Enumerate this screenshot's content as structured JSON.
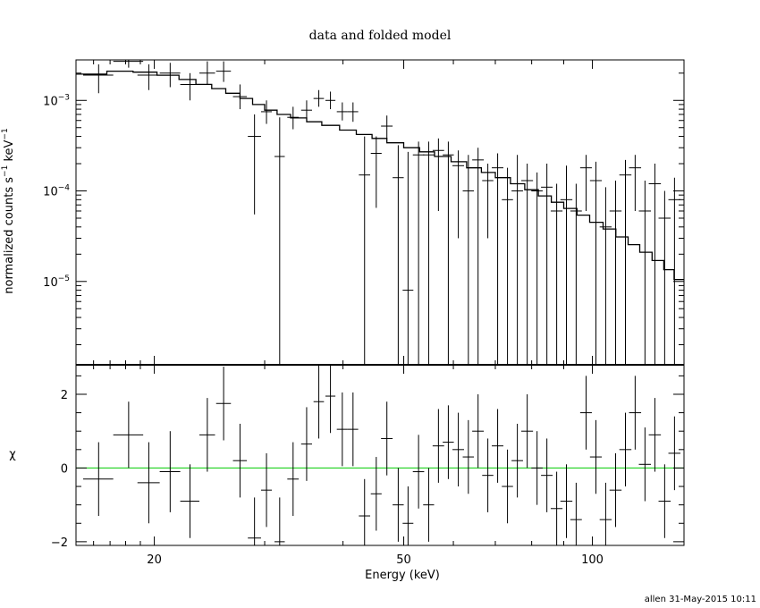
{
  "chart_data": {
    "type": "scatter",
    "title": "data and folded model",
    "xlabel": "Energy (keV)",
    "xscale": "log",
    "xlim": [
      15,
      140
    ],
    "footer": "allen 31-May-2015 10:11",
    "top_panel": {
      "ylabel_main": "normalized counts s",
      "ylabel_sup1": "−1",
      "ylabel_mid": " keV",
      "ylabel_sup2": "−1",
      "yscale": "log",
      "ylim": [
        1.2e-06,
        0.0028
      ],
      "ytick_labels": [
        {
          "base": "10",
          "exp": "−3",
          "value": 0.001
        },
        {
          "base": "10",
          "exp": "−4",
          "value": 0.0001
        },
        {
          "base": "10",
          "exp": "−5",
          "value": 1e-05
        }
      ],
      "data": [
        {
          "x": 16.3,
          "dx": 0.9,
          "y": 0.0019,
          "lo": 0.0012,
          "hi": 0.0025
        },
        {
          "x": 18.2,
          "dx": 1.0,
          "y": 0.0027,
          "lo": 0.0023,
          "hi": 0.0028
        },
        {
          "x": 19.6,
          "dx": 0.8,
          "y": 0.0019,
          "lo": 0.0013,
          "hi": 0.0025
        },
        {
          "x": 21.2,
          "dx": 0.8,
          "y": 0.002,
          "lo": 0.0014,
          "hi": 0.0026
        },
        {
          "x": 22.8,
          "dx": 0.8,
          "y": 0.0015,
          "lo": 0.001,
          "hi": 0.002
        },
        {
          "x": 24.3,
          "dx": 0.7,
          "y": 0.002,
          "lo": 0.0015,
          "hi": 0.0027
        },
        {
          "x": 25.8,
          "dx": 0.7,
          "y": 0.0021,
          "lo": 0.0016,
          "hi": 0.0027
        },
        {
          "x": 27.4,
          "dx": 0.7,
          "y": 0.0011,
          "lo": 0.0008,
          "hi": 0.0015
        },
        {
          "x": 28.9,
          "dx": 0.7,
          "y": 0.0004,
          "lo": 5.5e-05,
          "hi": 0.0007
        },
        {
          "x": 30.2,
          "dx": 0.6,
          "y": 0.00075,
          "lo": 0.00055,
          "hi": 0.001
        },
        {
          "x": 31.7,
          "dx": 0.6,
          "y": 0.00024,
          "lo": 1.2e-06,
          "hi": 0.00065
        },
        {
          "x": 33.3,
          "dx": 0.7,
          "y": 0.00065,
          "lo": 0.00048,
          "hi": 0.00085
        },
        {
          "x": 35.0,
          "dx": 0.7,
          "y": 0.00078,
          "lo": 0.0006,
          "hi": 0.001
        },
        {
          "x": 36.6,
          "dx": 0.7,
          "y": 0.00105,
          "lo": 0.00085,
          "hi": 0.0013
        },
        {
          "x": 38.2,
          "dx": 0.7,
          "y": 0.001,
          "lo": 0.0008,
          "hi": 0.00125
        },
        {
          "x": 39.9,
          "dx": 0.8,
          "y": 0.00075,
          "lo": 0.0006,
          "hi": 0.00095
        },
        {
          "x": 41.5,
          "dx": 0.8,
          "y": 0.00075,
          "lo": 0.00058,
          "hi": 0.00095
        },
        {
          "x": 43.3,
          "dx": 0.9,
          "y": 0.00015,
          "lo": 1.2e-06,
          "hi": 0.0004
        },
        {
          "x": 45.2,
          "dx": 0.9,
          "y": 0.00026,
          "lo": 6.5e-05,
          "hi": 0.0004
        },
        {
          "x": 47.0,
          "dx": 1.0,
          "y": 0.00052,
          "lo": 0.00038,
          "hi": 0.00068
        },
        {
          "x": 49.0,
          "dx": 1.0,
          "y": 0.00014,
          "lo": 1.2e-06,
          "hi": 0.00032
        },
        {
          "x": 50.8,
          "dx": 1.0,
          "y": 8e-06,
          "lo": 1.2e-06,
          "hi": 0.00027
        },
        {
          "x": 52.8,
          "dx": 1.1,
          "y": 0.00025,
          "lo": 1.2e-06,
          "hi": 0.00035
        },
        {
          "x": 54.8,
          "dx": 1.1,
          "y": 0.00025,
          "lo": 1.2e-06,
          "hi": 0.00035
        },
        {
          "x": 56.8,
          "dx": 1.2,
          "y": 0.00028,
          "lo": 6e-05,
          "hi": 0.00038
        },
        {
          "x": 58.9,
          "dx": 1.2,
          "y": 0.00025,
          "lo": 1.2e-06,
          "hi": 0.00035
        },
        {
          "x": 61.1,
          "dx": 1.3,
          "y": 0.00019,
          "lo": 3e-05,
          "hi": 0.00028
        },
        {
          "x": 63.4,
          "dx": 1.3,
          "y": 0.0001,
          "lo": 1.2e-06,
          "hi": 0.00025
        },
        {
          "x": 65.7,
          "dx": 1.4,
          "y": 0.00022,
          "lo": 1.2e-06,
          "hi": 0.0003
        },
        {
          "x": 68.1,
          "dx": 1.4,
          "y": 0.00013,
          "lo": 3e-05,
          "hi": 0.0002
        },
        {
          "x": 70.6,
          "dx": 1.5,
          "y": 0.00018,
          "lo": 1.2e-06,
          "hi": 0.00026
        },
        {
          "x": 73.2,
          "dx": 1.5,
          "y": 8e-05,
          "lo": 1.2e-06,
          "hi": 0.00018
        },
        {
          "x": 75.9,
          "dx": 1.6,
          "y": 0.0001,
          "lo": 1.2e-06,
          "hi": 0.00025
        },
        {
          "x": 78.7,
          "dx": 1.7,
          "y": 0.00013,
          "lo": 1.2e-06,
          "hi": 0.0002
        },
        {
          "x": 81.6,
          "dx": 1.7,
          "y": 0.0001,
          "lo": 1.2e-06,
          "hi": 0.00016
        },
        {
          "x": 84.6,
          "dx": 1.8,
          "y": 0.00011,
          "lo": 1.2e-06,
          "hi": 0.0002
        },
        {
          "x": 87.7,
          "dx": 1.9,
          "y": 6e-05,
          "lo": 1.2e-06,
          "hi": 0.00012
        },
        {
          "x": 90.9,
          "dx": 2.0,
          "y": 8e-05,
          "lo": 1.2e-06,
          "hi": 0.00019
        },
        {
          "x": 94.2,
          "dx": 2.0,
          "y": 6e-05,
          "lo": 1.2e-06,
          "hi": 0.00012
        },
        {
          "x": 97.7,
          "dx": 2.1,
          "y": 0.00018,
          "lo": 6e-05,
          "hi": 0.00025
        },
        {
          "x": 101.3,
          "dx": 2.2,
          "y": 0.00013,
          "lo": 1.2e-06,
          "hi": 0.00021
        },
        {
          "x": 105.0,
          "dx": 2.3,
          "y": 4e-05,
          "lo": 1.2e-06,
          "hi": 0.00011
        },
        {
          "x": 108.9,
          "dx": 2.4,
          "y": 6e-05,
          "lo": 1.2e-06,
          "hi": 0.00013
        },
        {
          "x": 112.9,
          "dx": 2.5,
          "y": 0.00015,
          "lo": 1.2e-06,
          "hi": 0.00022
        },
        {
          "x": 117.0,
          "dx": 2.6,
          "y": 0.00018,
          "lo": 6e-05,
          "hi": 0.00025
        },
        {
          "x": 121.3,
          "dx": 2.7,
          "y": 6e-05,
          "lo": 1.2e-06,
          "hi": 0.00013
        },
        {
          "x": 125.8,
          "dx": 2.8,
          "y": 0.00012,
          "lo": 1.2e-06,
          "hi": 0.0002
        },
        {
          "x": 130.4,
          "dx": 2.9,
          "y": 5e-05,
          "lo": 1.2e-06,
          "hi": 0.0001
        },
        {
          "x": 135.2,
          "dx": 3.0,
          "y": 8e-05,
          "lo": 1.2e-06,
          "hi": 0.00014
        }
      ],
      "model": [
        [
          15.0,
          0.00195
        ],
        [
          16.8,
          0.00195
        ],
        [
          16.8,
          0.0021
        ],
        [
          18.5,
          0.0021
        ],
        [
          18.5,
          0.00205
        ],
        [
          20.2,
          0.00205
        ],
        [
          20.2,
          0.0019
        ],
        [
          21.9,
          0.0019
        ],
        [
          21.9,
          0.0017
        ],
        [
          23.3,
          0.0017
        ],
        [
          23.3,
          0.0015
        ],
        [
          24.7,
          0.0015
        ],
        [
          24.7,
          0.00135
        ],
        [
          26.0,
          0.00135
        ],
        [
          26.0,
          0.0012
        ],
        [
          27.4,
          0.0012
        ],
        [
          27.4,
          0.00105
        ],
        [
          28.7,
          0.00105
        ],
        [
          28.7,
          0.0009
        ],
        [
          30.0,
          0.0009
        ],
        [
          30.0,
          0.00078
        ],
        [
          31.4,
          0.00078
        ],
        [
          31.4,
          0.0007
        ],
        [
          33.0,
          0.0007
        ],
        [
          33.0,
          0.00064
        ],
        [
          35.0,
          0.00064
        ],
        [
          35.0,
          0.00058
        ],
        [
          37.0,
          0.00058
        ],
        [
          37.0,
          0.00053
        ],
        [
          39.5,
          0.00053
        ],
        [
          39.5,
          0.00047
        ],
        [
          42.0,
          0.00047
        ],
        [
          42.0,
          0.00042
        ],
        [
          44.5,
          0.00042
        ],
        [
          44.5,
          0.00038
        ],
        [
          47.0,
          0.00038
        ],
        [
          47.0,
          0.00034
        ],
        [
          50.0,
          0.00034
        ],
        [
          50.0,
          0.0003
        ],
        [
          53.0,
          0.0003
        ],
        [
          53.0,
          0.00027
        ],
        [
          56.0,
          0.00027
        ],
        [
          56.0,
          0.00024
        ],
        [
          59.5,
          0.00024
        ],
        [
          59.5,
          0.00021
        ],
        [
          63.0,
          0.00021
        ],
        [
          63.0,
          0.00018
        ],
        [
          66.5,
          0.00018
        ],
        [
          66.5,
          0.00016
        ],
        [
          70.0,
          0.00016
        ],
        [
          70.0,
          0.00014
        ],
        [
          74.0,
          0.00014
        ],
        [
          74.0,
          0.00012
        ],
        [
          78.0,
          0.00012
        ],
        [
          78.0,
          0.000103
        ],
        [
          82.0,
          0.000103
        ],
        [
          82.0,
          8.8e-05
        ],
        [
          86.0,
          8.8e-05
        ],
        [
          86.0,
          7.5e-05
        ],
        [
          90.0,
          7.5e-05
        ],
        [
          90.0,
          6.4e-05
        ],
        [
          94.5,
          6.4e-05
        ],
        [
          94.5,
          5.4e-05
        ],
        [
          99.0,
          5.4e-05
        ],
        [
          99.0,
          4.5e-05
        ],
        [
          104.0,
          4.5e-05
        ],
        [
          104.0,
          3.8e-05
        ],
        [
          109.0,
          3.8e-05
        ],
        [
          109.0,
          3.1e-05
        ],
        [
          114.0,
          3.1e-05
        ],
        [
          114.0,
          2.55e-05
        ],
        [
          119.0,
          2.55e-05
        ],
        [
          119.0,
          2.1e-05
        ],
        [
          124.5,
          2.1e-05
        ],
        [
          124.5,
          1.7e-05
        ],
        [
          130.0,
          1.7e-05
        ],
        [
          130.0,
          1.35e-05
        ],
        [
          135.0,
          1.35e-05
        ],
        [
          135.0,
          1.05e-05
        ],
        [
          140.0,
          1.05e-05
        ]
      ]
    },
    "bottom_panel": {
      "ylabel": "χ",
      "ylim": [
        -2.1,
        2.8
      ],
      "yticks": [
        -2,
        0,
        2
      ],
      "ytick_labels": [
        "−2",
        "0",
        "2"
      ],
      "zero_line_color": "#00cc00",
      "data": [
        {
          "x": 16.3,
          "dx": 0.9,
          "y": -0.3,
          "e": 1.0
        },
        {
          "x": 18.2,
          "dx": 1.0,
          "y": 0.9,
          "e": 0.9
        },
        {
          "x": 19.6,
          "dx": 0.8,
          "y": -0.4,
          "e": 1.1
        },
        {
          "x": 21.2,
          "dx": 0.8,
          "y": -0.1,
          "e": 1.1
        },
        {
          "x": 22.8,
          "dx": 0.8,
          "y": -0.9,
          "e": 1.0
        },
        {
          "x": 24.3,
          "dx": 0.7,
          "y": 0.9,
          "e": 1.0
        },
        {
          "x": 25.8,
          "dx": 0.7,
          "y": 1.75,
          "e": 1.0
        },
        {
          "x": 27.4,
          "dx": 0.7,
          "y": 0.2,
          "e": 1.0
        },
        {
          "x": 28.9,
          "dx": 0.7,
          "y": -1.9,
          "e": 1.1
        },
        {
          "x": 30.2,
          "dx": 0.6,
          "y": -0.6,
          "e": 1.0
        },
        {
          "x": 31.7,
          "dx": 0.6,
          "y": -2.0,
          "e": 1.2
        },
        {
          "x": 33.3,
          "dx": 0.7,
          "y": -0.3,
          "e": 1.0
        },
        {
          "x": 35.0,
          "dx": 0.7,
          "y": 0.65,
          "e": 1.0
        },
        {
          "x": 36.6,
          "dx": 0.7,
          "y": 1.8,
          "e": 1.0
        },
        {
          "x": 38.2,
          "dx": 0.7,
          "y": 1.95,
          "e": 1.0
        },
        {
          "x": 39.9,
          "dx": 0.8,
          "y": 1.05,
          "e": 1.0
        },
        {
          "x": 41.5,
          "dx": 0.8,
          "y": 1.05,
          "e": 1.0
        },
        {
          "x": 43.3,
          "dx": 0.9,
          "y": -1.3,
          "e": 1.0
        },
        {
          "x": 45.2,
          "dx": 0.9,
          "y": -0.7,
          "e": 1.0
        },
        {
          "x": 47.0,
          "dx": 1.0,
          "y": 0.8,
          "e": 1.0
        },
        {
          "x": 49.0,
          "dx": 1.0,
          "y": -1.0,
          "e": 1.0
        },
        {
          "x": 50.8,
          "dx": 1.0,
          "y": -1.5,
          "e": 1.0
        },
        {
          "x": 52.8,
          "dx": 1.1,
          "y": -0.1,
          "e": 1.0
        },
        {
          "x": 54.8,
          "dx": 1.1,
          "y": -1.0,
          "e": 1.0
        },
        {
          "x": 56.8,
          "dx": 1.2,
          "y": 0.6,
          "e": 1.0
        },
        {
          "x": 58.9,
          "dx": 1.2,
          "y": 0.7,
          "e": 1.0
        },
        {
          "x": 61.1,
          "dx": 1.3,
          "y": 0.5,
          "e": 1.0
        },
        {
          "x": 63.4,
          "dx": 1.3,
          "y": 0.3,
          "e": 1.0
        },
        {
          "x": 65.7,
          "dx": 1.4,
          "y": 1.0,
          "e": 1.0
        },
        {
          "x": 68.1,
          "dx": 1.4,
          "y": -0.2,
          "e": 1.0
        },
        {
          "x": 70.6,
          "dx": 1.5,
          "y": 0.6,
          "e": 1.0
        },
        {
          "x": 73.2,
          "dx": 1.5,
          "y": -0.5,
          "e": 1.0
        },
        {
          "x": 75.9,
          "dx": 1.6,
          "y": 0.2,
          "e": 1.0
        },
        {
          "x": 78.7,
          "dx": 1.7,
          "y": 1.0,
          "e": 1.0
        },
        {
          "x": 81.6,
          "dx": 1.7,
          "y": 0.0,
          "e": 1.0
        },
        {
          "x": 84.6,
          "dx": 1.8,
          "y": -0.2,
          "e": 1.0
        },
        {
          "x": 87.7,
          "dx": 1.9,
          "y": -1.1,
          "e": 1.0
        },
        {
          "x": 90.9,
          "dx": 2.0,
          "y": -0.9,
          "e": 1.0
        },
        {
          "x": 94.2,
          "dx": 2.0,
          "y": -1.4,
          "e": 1.0
        },
        {
          "x": 97.7,
          "dx": 2.1,
          "y": 1.5,
          "e": 1.0
        },
        {
          "x": 101.3,
          "dx": 2.2,
          "y": 0.3,
          "e": 1.0
        },
        {
          "x": 105.0,
          "dx": 2.3,
          "y": -1.4,
          "e": 1.0
        },
        {
          "x": 108.9,
          "dx": 2.4,
          "y": -0.6,
          "e": 1.0
        },
        {
          "x": 112.9,
          "dx": 2.5,
          "y": 0.5,
          "e": 1.0
        },
        {
          "x": 117.0,
          "dx": 2.6,
          "y": 1.5,
          "e": 1.0
        },
        {
          "x": 121.3,
          "dx": 2.7,
          "y": 0.1,
          "e": 1.0
        },
        {
          "x": 125.8,
          "dx": 2.8,
          "y": 0.9,
          "e": 1.0
        },
        {
          "x": 130.4,
          "dx": 2.9,
          "y": -0.9,
          "e": 1.0
        },
        {
          "x": 135.2,
          "dx": 3.0,
          "y": 0.4,
          "e": 1.0
        }
      ]
    },
    "xtick_labels": [
      {
        "text": "20",
        "value": 20
      },
      {
        "text": "50",
        "value": 50
      },
      {
        "text": "100",
        "value": 100
      }
    ]
  }
}
